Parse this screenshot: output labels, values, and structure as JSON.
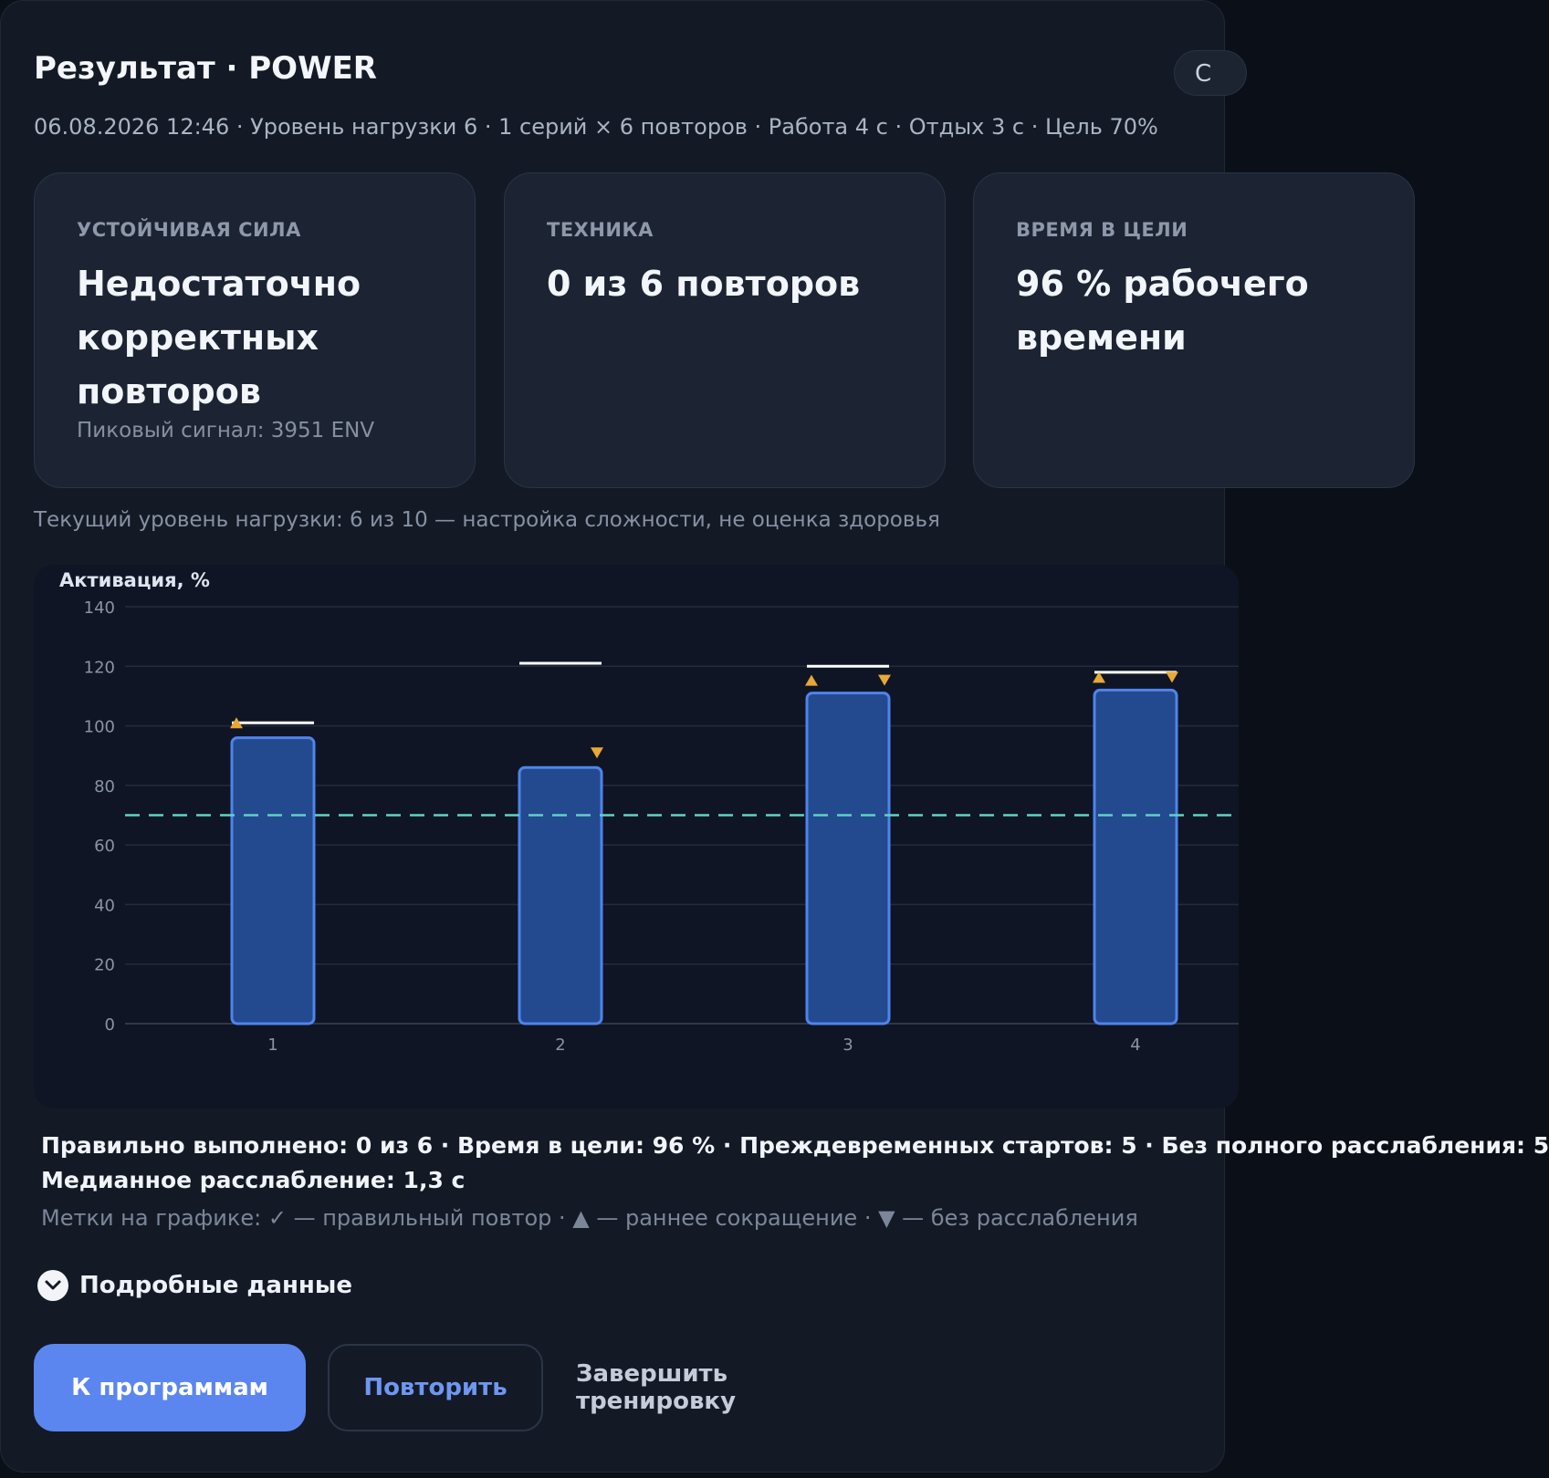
{
  "header": {
    "title": "Результат · POWER",
    "top_right_button": "С",
    "subtitle": "06.08.2026 12:46 · Уровень нагрузки 6 · 1 серий × 6 повторов · Работа 4 с · Отдых 3 с · Цель 70%"
  },
  "cards": [
    {
      "label": "УСТОЙЧИВАЯ СИЛА",
      "value_lines": [
        "Недостаточно",
        "корректных",
        "повторов"
      ],
      "sub": "Пиковый сигнал: 3951 ENV"
    },
    {
      "label": "ТЕХНИКА",
      "value_lines": [
        "0 из 6 повторов"
      ],
      "sub": ""
    },
    {
      "label": "ВРЕМЯ В ЦЕЛИ",
      "value_lines": [
        "96 % рабочего",
        "времени"
      ],
      "sub": ""
    }
  ],
  "load_note": "Текущий уровень нагрузки: 6 из 10 — настройка сложности, не оценка здоровья",
  "chart_data": {
    "type": "bar",
    "title": "Активация, %",
    "categories": [
      "1",
      "2",
      "3",
      "4"
    ],
    "values": [
      96,
      86,
      111,
      112
    ],
    "peak_markers": [
      101,
      121,
      120,
      118
    ],
    "early_start": [
      true,
      false,
      true,
      true
    ],
    "no_relax": [
      false,
      true,
      true,
      true
    ],
    "target": 70,
    "ylim": [
      0,
      140
    ],
    "yticks": [
      0,
      20,
      40,
      60,
      80,
      100,
      120,
      140
    ],
    "grid": true,
    "colors": {
      "bar_fill": "#23498f",
      "bar_stroke": "#4f84ea",
      "target_line": "#5fd3c3",
      "marker": "#e8a838",
      "peak": "#ffffff"
    }
  },
  "stats": {
    "line1": "Правильно выполнено: 0 из 6 · Время в цели: 96 % · Преждевременных стартов: 5 · Без полного расслабления: 5",
    "line2": "Медианное расслабление: 1,3 с",
    "legend": "Метки на графике: ✓ — правильный повтор · ▲ — раннее сокращение · ▼ — без расслабления"
  },
  "details": {
    "label": "Подробные данные",
    "icon": "chevron-down-icon"
  },
  "actions": {
    "primary": "К программам",
    "repeat": "Повторить",
    "finish": "Завершить тренировку"
  }
}
